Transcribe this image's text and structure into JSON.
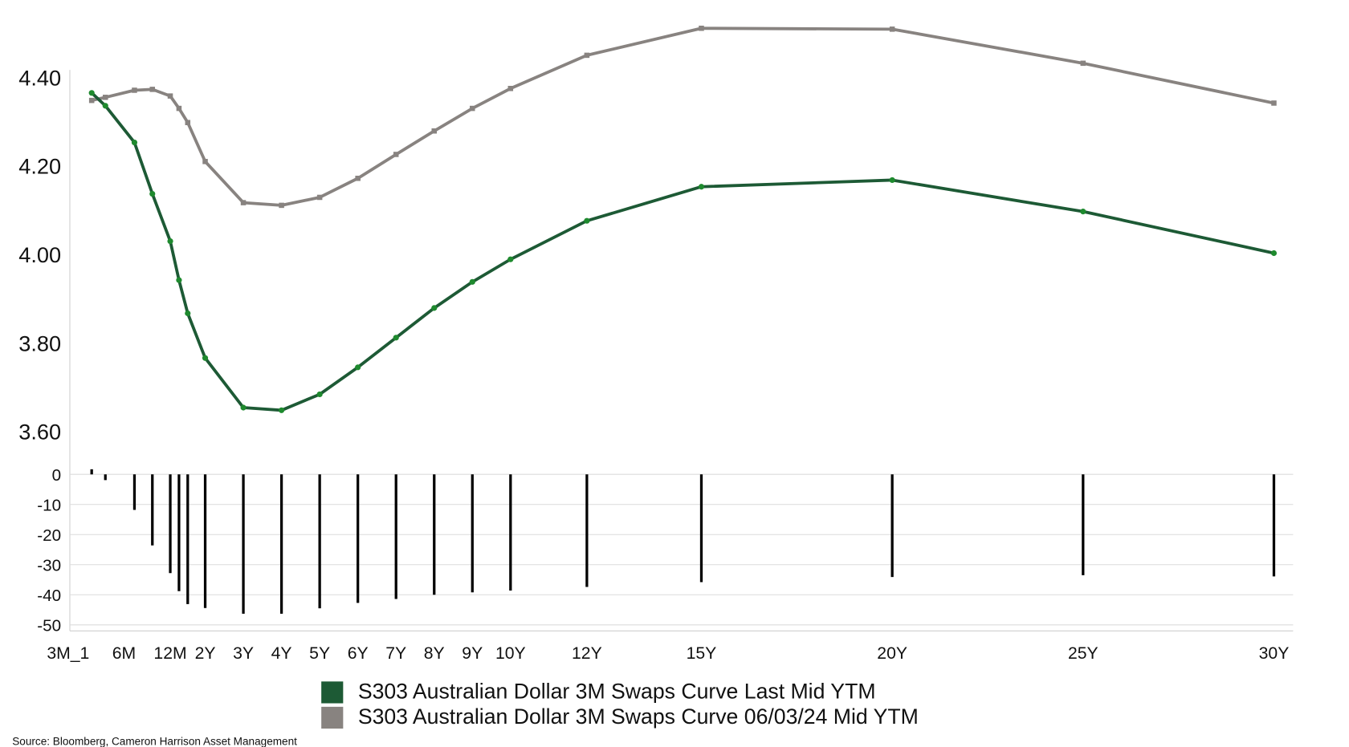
{
  "source": "Source: Bloomberg, Cameron Harrison Asset Management",
  "chart_data": [
    {
      "type": "line",
      "x": [
        0.25,
        0.33,
        0.5,
        0.75,
        1,
        1.25,
        1.5,
        2,
        3,
        4,
        5,
        6,
        7,
        8,
        9,
        10,
        12,
        15,
        20,
        25,
        30
      ],
      "series": [
        {
          "name": "S303 Australian Dollar 3M Swaps Curve Last Mid YTM",
          "color": "#1d5a35",
          "marker_color": "#1e8a2e",
          "values": [
            4.37,
            4.341,
            4.258,
            4.142,
            4.035,
            3.947,
            3.872,
            3.771,
            3.659,
            3.653,
            3.689,
            3.75,
            3.817,
            3.884,
            3.943,
            3.994,
            4.081,
            4.158,
            4.173,
            4.102,
            4.008
          ]
        },
        {
          "name": "S303 Australian Dollar 3M Swaps Curve 06/03/24 Mid YTM",
          "color": "#888380",
          "marker_color": "#888380",
          "values": [
            4.353,
            4.36,
            4.376,
            4.378,
            4.363,
            4.335,
            4.303,
            4.215,
            4.122,
            4.116,
            4.134,
            4.177,
            4.231,
            4.284,
            4.335,
            4.38,
            4.455,
            4.516,
            4.514,
            4.437,
            4.347
          ]
        }
      ],
      "ylim": [
        3.52,
        4.56
      ],
      "yticks": [
        {
          "value": 3.6,
          "label": "3.60"
        },
        {
          "value": 3.8,
          "label": "3.80"
        },
        {
          "value": 4.0,
          "label": "4.00"
        },
        {
          "value": 4.2,
          "label": "4.20"
        },
        {
          "value": 4.4,
          "label": "4.40"
        }
      ]
    },
    {
      "type": "bar",
      "x": [
        0.25,
        0.33,
        0.5,
        0.75,
        1,
        1.25,
        1.5,
        2,
        3,
        4,
        5,
        6,
        7,
        8,
        9,
        10,
        12,
        15,
        20,
        25,
        30
      ],
      "values": [
        1.7,
        -1.9,
        -11.8,
        -23.6,
        -32.8,
        -38.8,
        -43.1,
        -44.4,
        -46.3,
        -46.3,
        -44.5,
        -42.7,
        -41.4,
        -40.0,
        -39.2,
        -38.6,
        -37.4,
        -35.8,
        -34.1,
        -33.5,
        -33.9
      ],
      "color": "#000000",
      "ylim": [
        -52,
        2.5
      ],
      "yticks": [
        -50,
        -40,
        -30,
        -20,
        -10,
        0
      ],
      "grid": true,
      "xticks": [
        {
          "value": 0.25,
          "label": "3M_1"
        },
        {
          "value": 0.5,
          "label": "6M"
        },
        {
          "value": 1,
          "label": "12M"
        },
        {
          "value": 2,
          "label": "2Y"
        },
        {
          "value": 3,
          "label": "3Y"
        },
        {
          "value": 4,
          "label": "4Y"
        },
        {
          "value": 5,
          "label": "5Y"
        },
        {
          "value": 6,
          "label": "6Y"
        },
        {
          "value": 7,
          "label": "7Y"
        },
        {
          "value": 8,
          "label": "8Y"
        },
        {
          "value": 9,
          "label": "9Y"
        },
        {
          "value": 10,
          "label": "10Y"
        },
        {
          "value": 12,
          "label": "12Y"
        },
        {
          "value": 15,
          "label": "15Y"
        },
        {
          "value": 20,
          "label": "20Y"
        },
        {
          "value": 25,
          "label": "25Y"
        },
        {
          "value": 30,
          "label": "30Y"
        }
      ]
    }
  ]
}
